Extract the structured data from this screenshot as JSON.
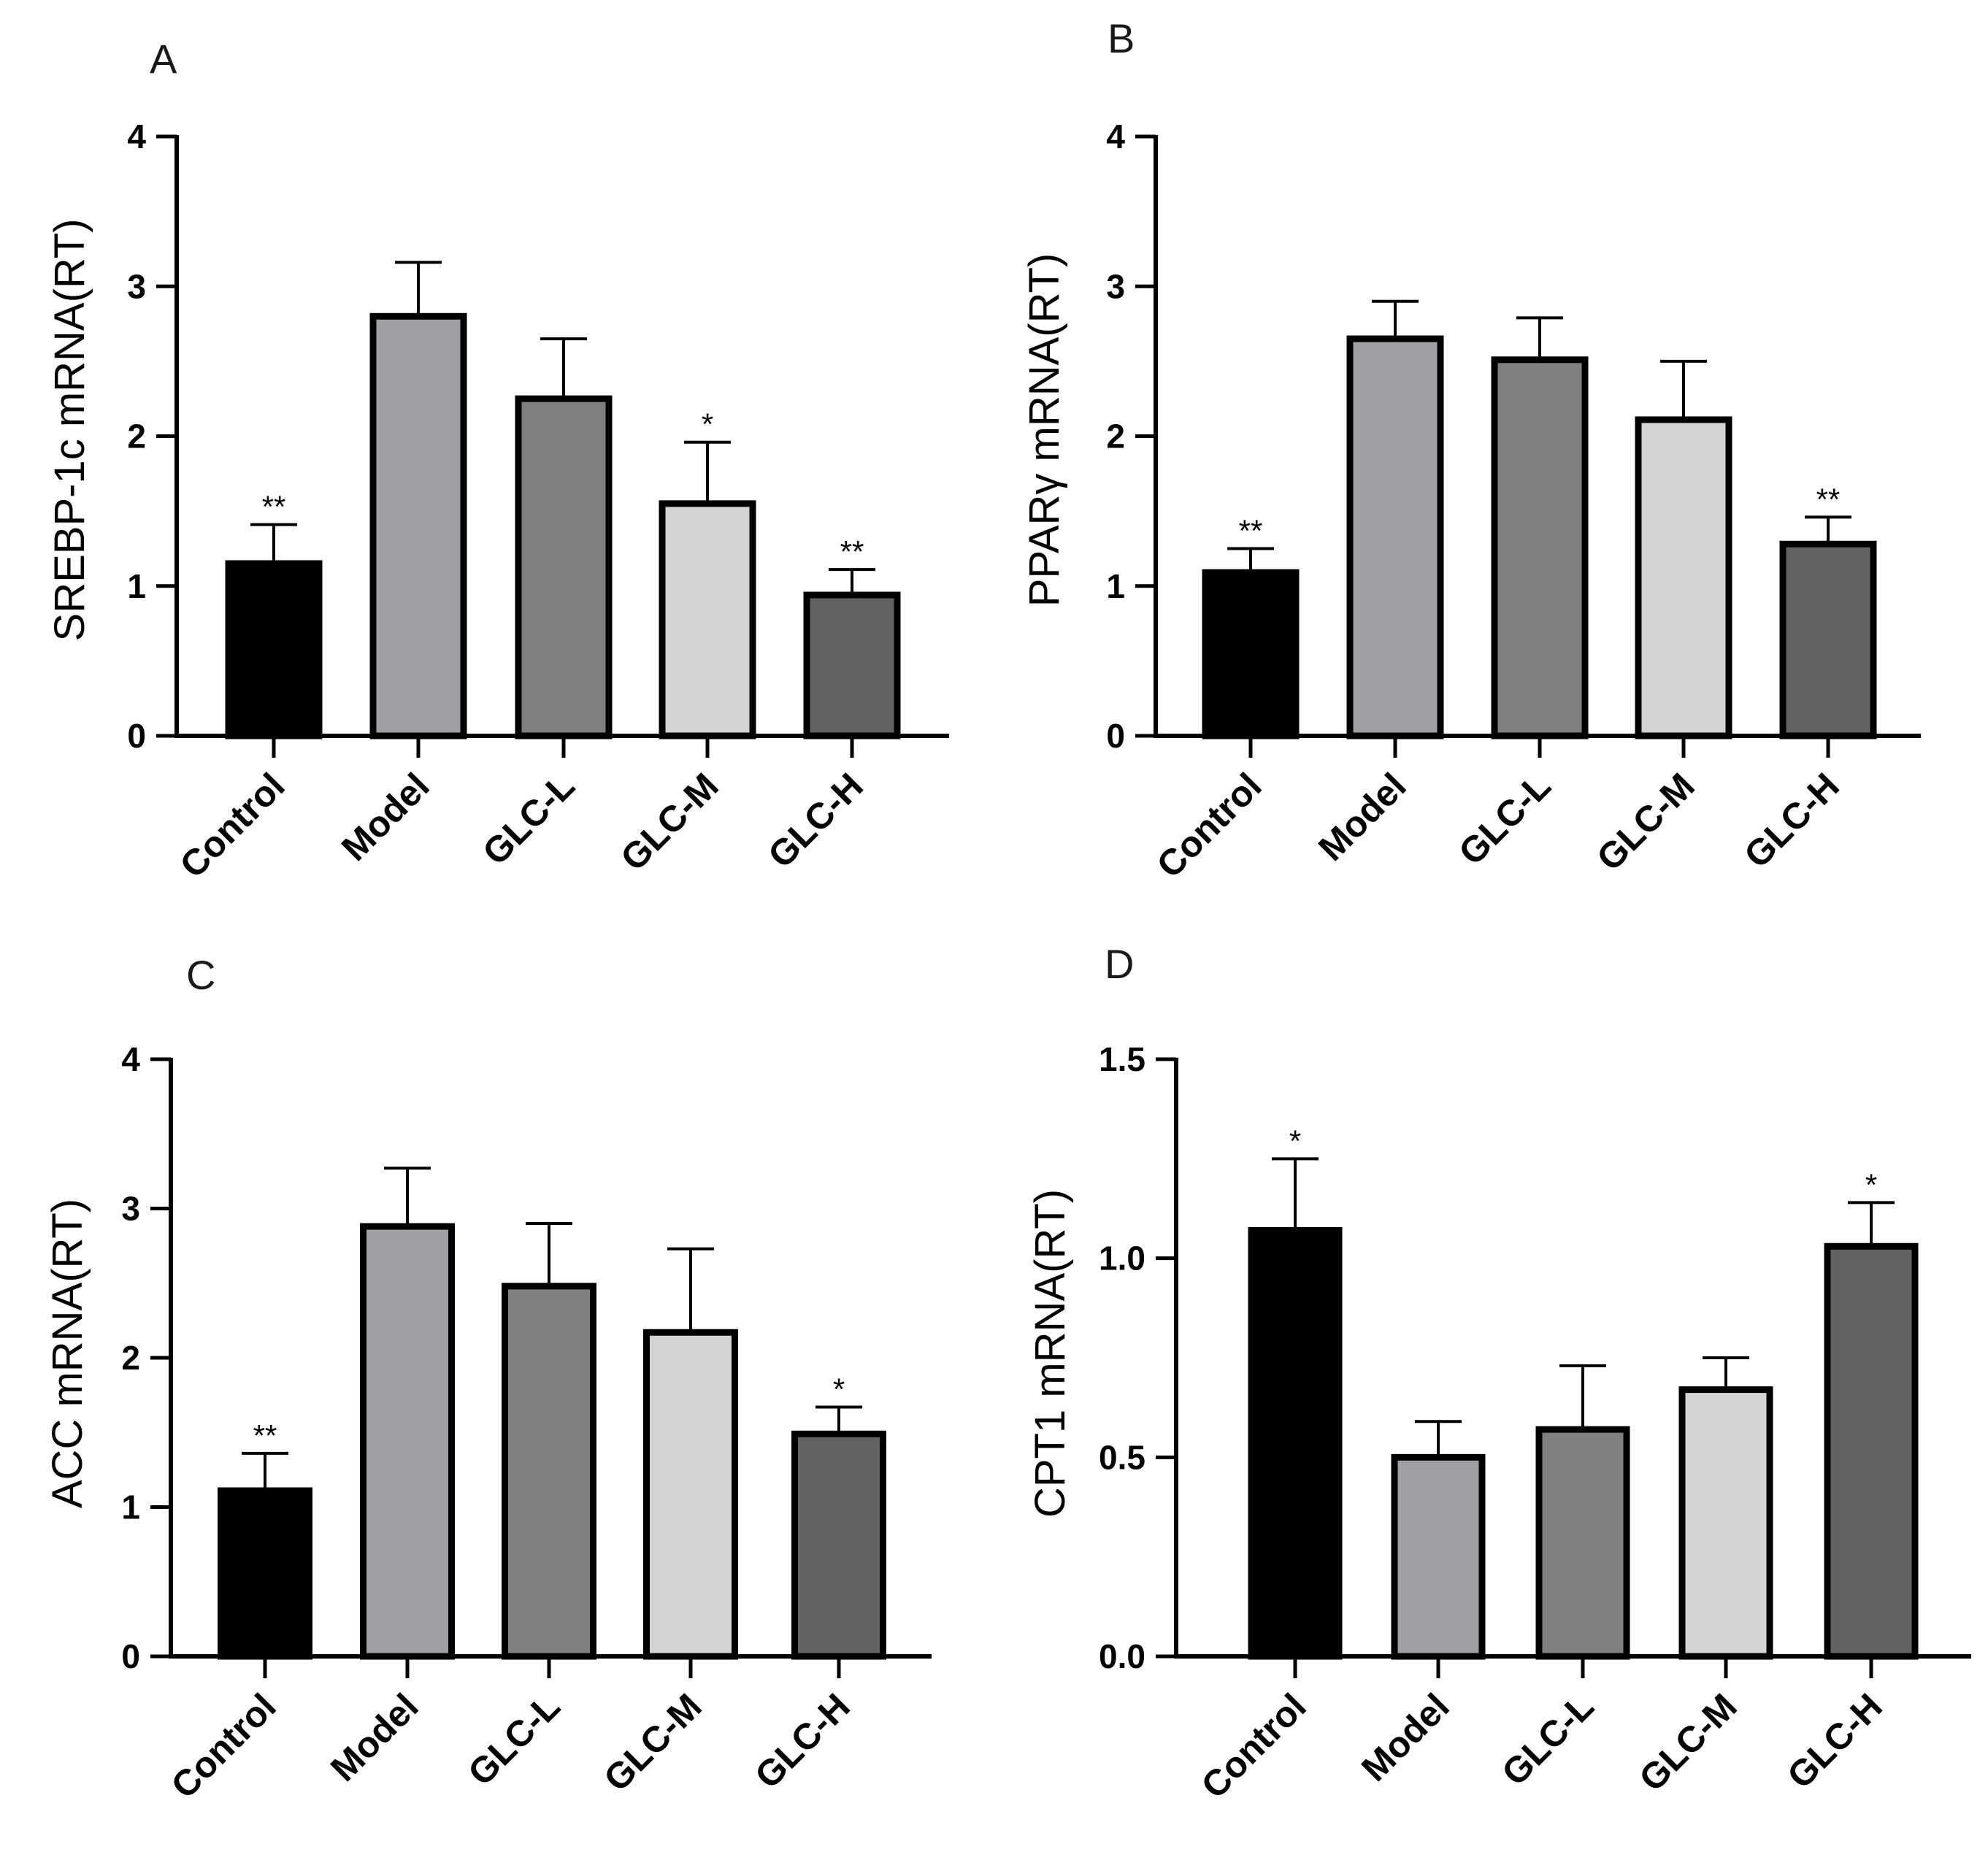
{
  "figure": {
    "bar_colors": [
      "#000000",
      "#a0a0a4",
      "#808080",
      "#d4d4d4",
      "#626262"
    ],
    "axis_color": "#000000"
  },
  "chart_data": [
    {
      "type": "bar",
      "panel": "A",
      "ylabel": "SREBP-1c mRNA(RT)",
      "categories": [
        "Control",
        "Model",
        "GLC-L",
        "GLC-M",
        "GLC-H"
      ],
      "values": [
        1.15,
        2.8,
        2.25,
        1.55,
        0.94
      ],
      "errors": [
        0.26,
        0.36,
        0.4,
        0.41,
        0.17
      ],
      "significance": [
        "**",
        "",
        "",
        "*",
        "**"
      ],
      "ylim": [
        0,
        4
      ],
      "ticks": [
        0,
        1,
        2,
        3,
        4
      ],
      "tick_labels": [
        "0",
        "1",
        "2",
        "3",
        "4"
      ]
    },
    {
      "type": "bar",
      "panel": "B",
      "ylabel": "PPARγ mRNA(RT)",
      "categories": [
        "Control",
        "Model",
        "GLC-L",
        "GLC-M",
        "GLC-H"
      ],
      "values": [
        1.09,
        2.65,
        2.51,
        2.11,
        1.28
      ],
      "errors": [
        0.16,
        0.25,
        0.28,
        0.39,
        0.18
      ],
      "significance": [
        "**",
        "",
        "",
        "",
        "**"
      ],
      "ylim": [
        0,
        4
      ],
      "ticks": [
        0,
        1,
        2,
        3,
        4
      ],
      "tick_labels": [
        "0",
        "1",
        "2",
        "3",
        "4"
      ]
    },
    {
      "type": "bar",
      "panel": "C",
      "ylabel": "ACC mRNA(RT)",
      "categories": [
        "Control",
        "Model",
        "GLC-L",
        "GLC-M",
        "GLC-H"
      ],
      "values": [
        1.11,
        2.88,
        2.48,
        2.17,
        1.49
      ],
      "errors": [
        0.25,
        0.39,
        0.42,
        0.56,
        0.18
      ],
      "significance": [
        "**",
        "",
        "",
        "",
        "*"
      ],
      "ylim": [
        0,
        4
      ],
      "ticks": [
        0,
        1,
        2,
        3,
        4
      ],
      "tick_labels": [
        "0",
        "1",
        "2",
        "3",
        "4"
      ]
    },
    {
      "type": "bar",
      "panel": "D",
      "ylabel": "CPT1 mRNA(RT)",
      "categories": [
        "Control",
        "Model",
        "GLC-L",
        "GLC-M",
        "GLC-H"
      ],
      "values": [
        1.07,
        0.5,
        0.57,
        0.67,
        1.03
      ],
      "errors": [
        0.18,
        0.09,
        0.16,
        0.08,
        0.11
      ],
      "significance": [
        "*",
        "",
        "",
        "",
        "*"
      ],
      "ylim": [
        0,
        1.5
      ],
      "ticks": [
        0,
        0.5,
        1.0,
        1.5
      ],
      "tick_labels": [
        "0.0",
        "0.5",
        "1.0",
        "1.5"
      ]
    }
  ]
}
